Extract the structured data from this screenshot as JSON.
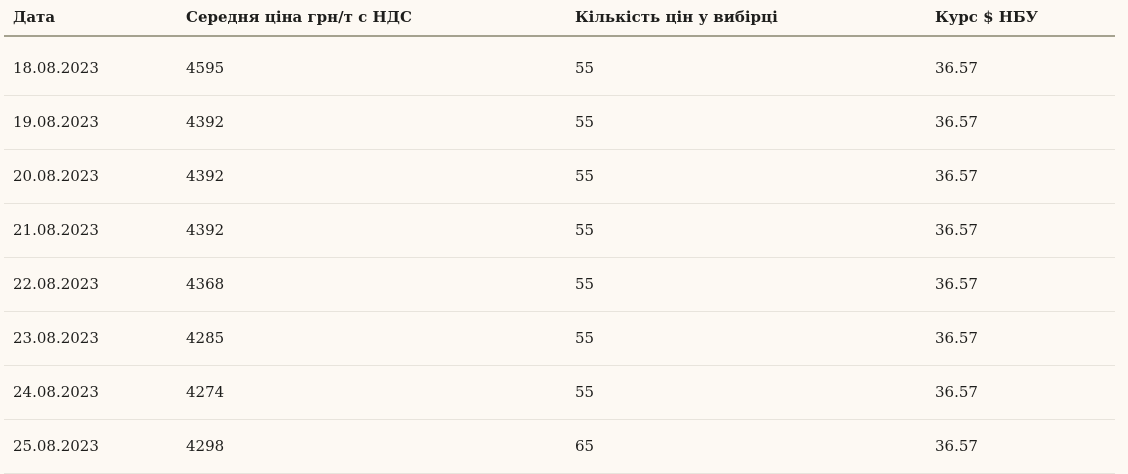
{
  "table": {
    "columns": [
      {
        "key": "date",
        "label": "Дата"
      },
      {
        "key": "avg_price",
        "label": "Середня ціна грн/т с НДС"
      },
      {
        "key": "sample_count",
        "label": "Кількість цін у вибірці"
      },
      {
        "key": "usd_rate",
        "label": "Курс $ НБУ"
      }
    ],
    "rows": [
      [
        "18.08.2023",
        "4595",
        "55",
        "36.57"
      ],
      [
        "19.08.2023",
        "4392",
        "55",
        "36.57"
      ],
      [
        "20.08.2023",
        "4392",
        "55",
        "36.57"
      ],
      [
        "21.08.2023",
        "4392",
        "55",
        "36.57"
      ],
      [
        "22.08.2023",
        "4368",
        "55",
        "36.57"
      ],
      [
        "23.08.2023",
        "4285",
        "55",
        "36.57"
      ],
      [
        "24.08.2023",
        "4274",
        "55",
        "36.57"
      ],
      [
        "25.08.2023",
        "4298",
        "65",
        "36.57"
      ]
    ]
  },
  "colors": {
    "page_background": "#fdf9f3",
    "header_border": "#a5a28f",
    "row_border": "#e8e4dc",
    "text": "#1e1e1c"
  }
}
